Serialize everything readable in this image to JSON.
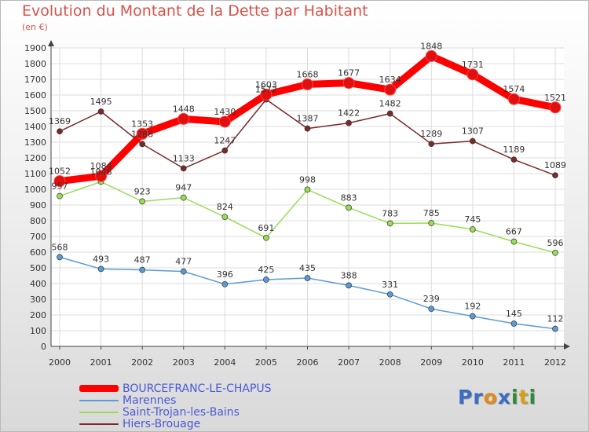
{
  "title": "Evolution du Montant de la Dette par Habitant",
  "subtitle": "(en €)",
  "chart_data": {
    "type": "line",
    "title": "Evolution du Montant de la Dette par Habitant",
    "subtitle": "(en €)",
    "xlabel": "",
    "ylabel": "",
    "x": [
      "2000",
      "2001",
      "2002",
      "2003",
      "2004",
      "2005",
      "2006",
      "2007",
      "2008",
      "2009",
      "2010",
      "2011",
      "2012"
    ],
    "ylim": [
      0,
      1900
    ],
    "yticks": [
      0,
      100,
      200,
      300,
      400,
      500,
      600,
      700,
      800,
      900,
      1000,
      1100,
      1200,
      1300,
      1400,
      1500,
      1600,
      1700,
      1800,
      1900
    ],
    "grid": true,
    "legend_position": "bottom-left",
    "series": [
      {
        "name": "BOURCEFRANC-LE-CHAPUS",
        "color": "#ff0000",
        "values": [
          1052,
          1084,
          1353,
          1448,
          1430,
          1603,
          1668,
          1677,
          1634,
          1848,
          1731,
          1574,
          1521
        ]
      },
      {
        "name": "Marennes",
        "color": "#5b9bd5",
        "values": [
          568,
          493,
          487,
          477,
          396,
          425,
          435,
          388,
          331,
          239,
          192,
          145,
          112
        ]
      },
      {
        "name": "Saint-Trojan-les-Bains",
        "color": "#99dd55",
        "values": [
          957,
          1048,
          923,
          947,
          824,
          691,
          998,
          883,
          783,
          785,
          745,
          667,
          596
        ]
      },
      {
        "name": "Hiers-Brouage",
        "color": "#7a2a2a",
        "values": [
          1369,
          1495,
          1288,
          1133,
          1247,
          1572,
          1387,
          1422,
          1482,
          1289,
          1307,
          1189,
          1089
        ]
      }
    ]
  },
  "logo": {
    "letters": [
      "P",
      "r",
      "o",
      "x",
      "i",
      "t",
      "i"
    ],
    "colors": [
      "#3b6cc7",
      "#3b6cc7",
      "#e08a1e",
      "#3b6cc7",
      "#2e8b3a",
      "#d4a017",
      "#2e8b3a"
    ]
  }
}
